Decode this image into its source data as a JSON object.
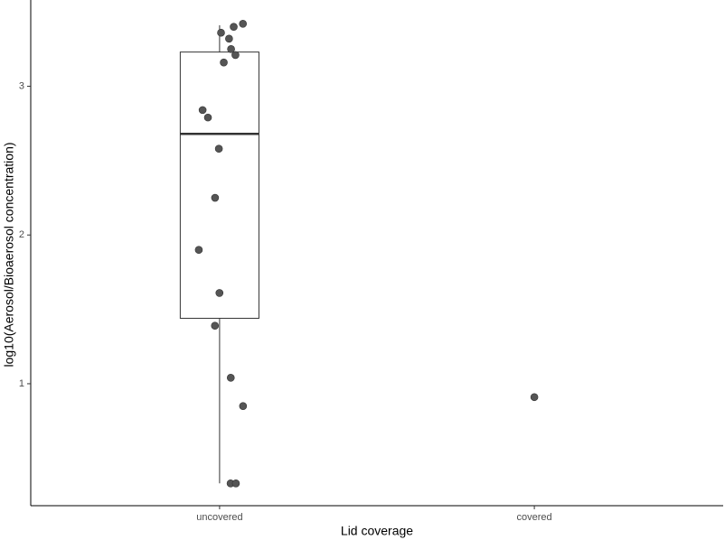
{
  "chart_data": {
    "type": "box",
    "x_label": "Lid coverage",
    "y_label": "log10(Aerosol/Bioaerosol concentration)",
    "groups": [
      {
        "name": "uncovered",
        "box": {
          "whisker_low": 0.33,
          "q1": 1.44,
          "median": 2.68,
          "q3": 3.23,
          "whisker_high": 3.41
        },
        "points": [
          3.42,
          3.36,
          3.4,
          3.32,
          3.25,
          3.21,
          3.16,
          2.84,
          2.79,
          2.58,
          2.25,
          1.9,
          1.61,
          1.39,
          1.04,
          0.85,
          0.33,
          0.33
        ]
      },
      {
        "name": "covered",
        "points": [
          0.91
        ]
      }
    ],
    "point_color": "#555555",
    "box_color": "#333333",
    "ylim": [
      0.18,
      3.58
    ],
    "yticks": [
      1,
      2,
      3
    ],
    "grid": false
  }
}
